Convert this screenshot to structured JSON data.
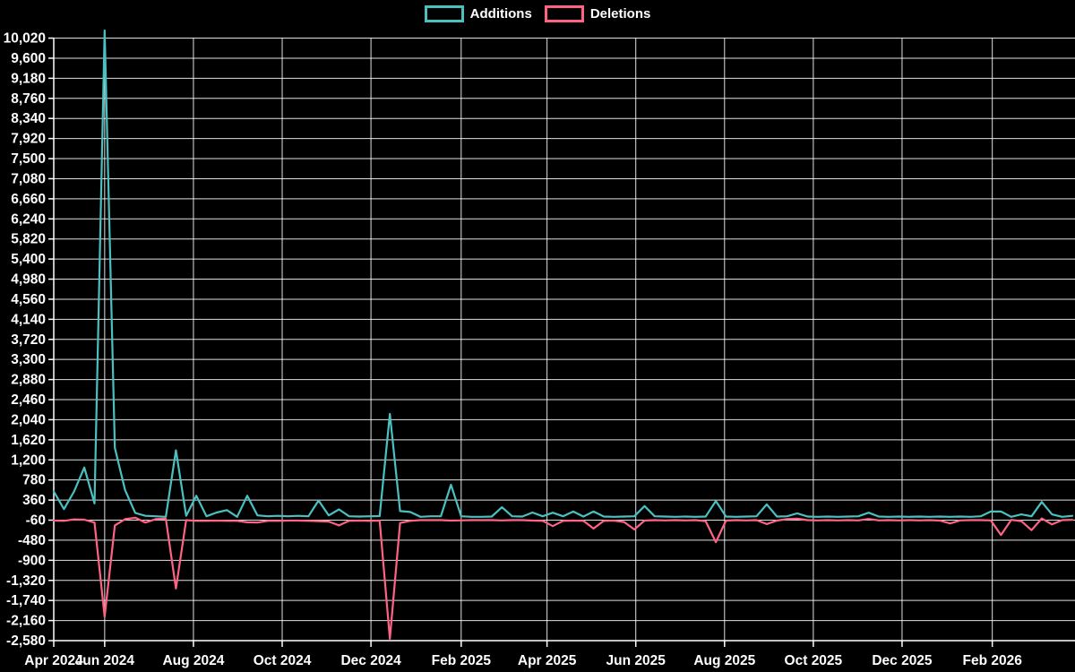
{
  "legend": {
    "items": [
      {
        "label": "Additions",
        "color": "#4bc0c0"
      },
      {
        "label": "Deletions",
        "color": "#ff6384"
      }
    ]
  },
  "chart_data": {
    "type": "line",
    "title": "",
    "xlabel": "",
    "ylabel": "",
    "background_color": "#000000",
    "grid_color": "rgba(255,255,255,0.88)",
    "axis_line_color": "#ffffff",
    "text_color": "#ffffff",
    "grid": true,
    "legend_position": "top-center",
    "x_axis": {
      "start_date": "2024-04-27",
      "interval_days": 7,
      "total_days": 700,
      "ticks": [
        {
          "label": "Apr 2024",
          "day": 0
        },
        {
          "label": "Jun 2024",
          "day": 35
        },
        {
          "label": "Aug 2024",
          "day": 96
        },
        {
          "label": "Oct 2024",
          "day": 157
        },
        {
          "label": "Dec 2024",
          "day": 218
        },
        {
          "label": "Feb 2025",
          "day": 280
        },
        {
          "label": "Apr 2025",
          "day": 339
        },
        {
          "label": "Jun 2025",
          "day": 400
        },
        {
          "label": "Aug 2025",
          "day": 461
        },
        {
          "label": "Oct 2025",
          "day": 522
        },
        {
          "label": "Dec 2025",
          "day": 583
        },
        {
          "label": "Feb 2026",
          "day": 645
        }
      ]
    },
    "y_axis": {
      "min": -2580,
      "max": 10180,
      "tick_min": -2580,
      "tick_step": 420,
      "tick_labels": [
        "-2,580",
        "-2,160",
        "-1,740",
        "-1,320",
        "-900",
        "-480",
        "-60",
        "360",
        "780",
        "1,200",
        "1,620",
        "2,040",
        "2,460",
        "2,880",
        "3,300",
        "3,720",
        "4,140",
        "4,560",
        "4,980",
        "5,400",
        "5,820",
        "6,240",
        "6,660",
        "7,080",
        "7,500",
        "7,920",
        "8,340",
        "8,760",
        "9,180",
        "9,600",
        "10,020"
      ]
    },
    "series": [
      {
        "name": "Additions",
        "color": "#4bc0c0",
        "values": [
          540,
          170,
          540,
          1040,
          290,
          10180,
          1450,
          570,
          90,
          30,
          20,
          10,
          1400,
          30,
          450,
          20,
          100,
          150,
          10,
          450,
          40,
          20,
          30,
          20,
          30,
          20,
          350,
          40,
          165,
          20,
          15,
          20,
          25,
          2160,
          130,
          110,
          10,
          20,
          20,
          680,
          20,
          10,
          10,
          15,
          210,
          20,
          15,
          100,
          20,
          95,
          20,
          120,
          15,
          120,
          15,
          10,
          15,
          20,
          235,
          20,
          15,
          10,
          15,
          10,
          15,
          340,
          15,
          10,
          15,
          20,
          270,
          15,
          20,
          82,
          15,
          10,
          15,
          10,
          15,
          20,
          96,
          15,
          10,
          15,
          10,
          15,
          10,
          15,
          10,
          15,
          10,
          20,
          120,
          120,
          10,
          60,
          20,
          320,
          60,
          10,
          30
        ]
      },
      {
        "name": "Deletions",
        "color": "#ff6384",
        "values": [
          -70,
          -75,
          -45,
          -50,
          -110,
          -2080,
          -170,
          -40,
          -10,
          -110,
          -40,
          -30,
          -1490,
          -60,
          -75,
          -75,
          -70,
          -75,
          -75,
          -105,
          -110,
          -75,
          -75,
          -70,
          -70,
          -75,
          -80,
          -90,
          -170,
          -75,
          -70,
          -75,
          -70,
          -2540,
          -120,
          -75,
          -60,
          -60,
          -60,
          -70,
          -65,
          -60,
          -60,
          -60,
          -65,
          -60,
          -60,
          -70,
          -75,
          -186,
          -75,
          -70,
          -75,
          -236,
          -75,
          -70,
          -100,
          -255,
          -70,
          -60,
          -65,
          -60,
          -65,
          -60,
          -80,
          -520,
          -70,
          -60,
          -65,
          -60,
          -142,
          -70,
          -40,
          -30,
          -60,
          -65,
          -60,
          -65,
          -60,
          -65,
          -35,
          -65,
          -60,
          -65,
          -60,
          -65,
          -60,
          -70,
          -130,
          -65,
          -60,
          -60,
          -65,
          -370,
          -55,
          -80,
          -270,
          -25,
          -150,
          -60,
          -55
        ]
      }
    ]
  }
}
